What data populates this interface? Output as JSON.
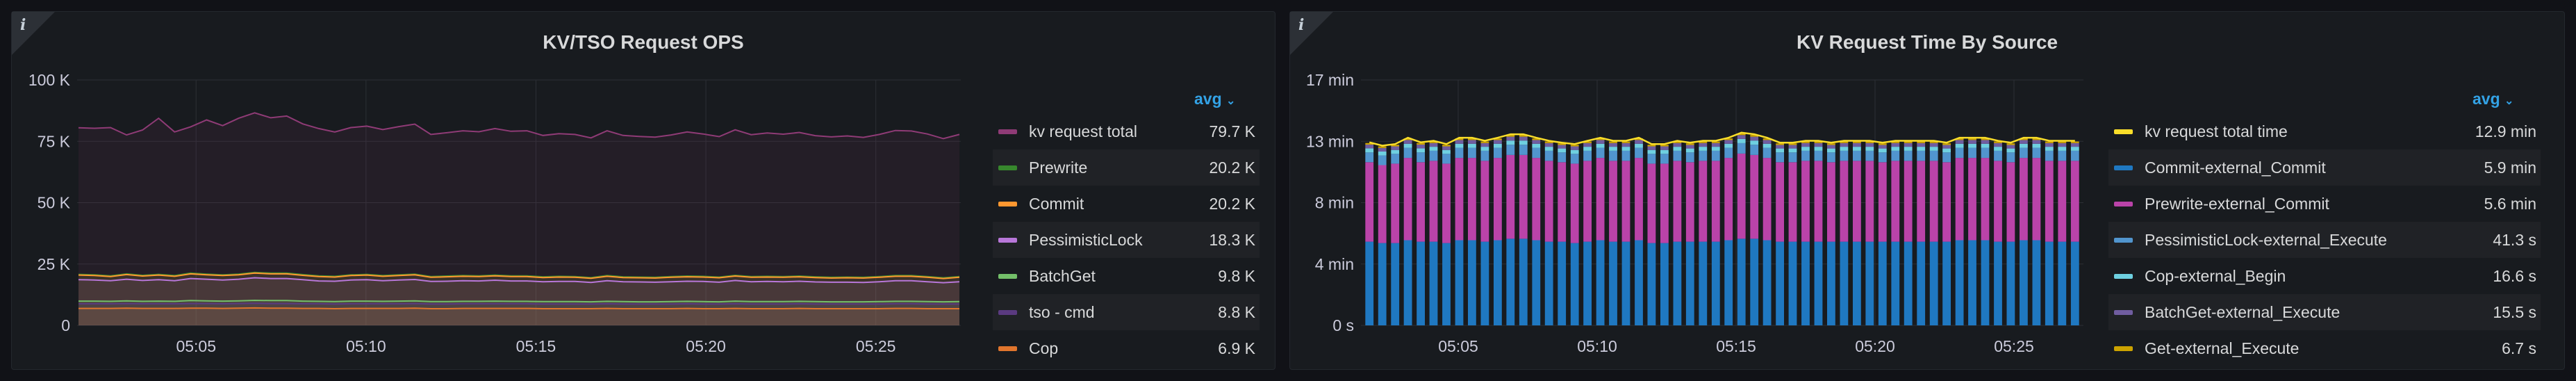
{
  "panels": [
    {
      "title": "KV/TSO Request OPS",
      "info_icon": "info-icon",
      "legend_calc": "avg",
      "legend_items": [
        {
          "name": "kv request total",
          "value": "79.7 K",
          "color": "#8f3b76"
        },
        {
          "name": "Prewrite",
          "value": "20.2 K",
          "color": "#37872d"
        },
        {
          "name": "Commit",
          "value": "20.2 K",
          "color": "#ff9830"
        },
        {
          "name": "PessimisticLock",
          "value": "18.3 K",
          "color": "#b877d9"
        },
        {
          "name": "BatchGet",
          "value": "9.8 K",
          "color": "#73bf69"
        },
        {
          "name": "tso - cmd",
          "value": "8.8 K",
          "color": "#5a3a80"
        },
        {
          "name": "Cop",
          "value": "6.9 K",
          "color": "#e0752d"
        }
      ]
    },
    {
      "title": "KV Request Time By Source",
      "info_icon": "info-icon",
      "legend_calc": "avg",
      "legend_items": [
        {
          "name": "kv request total time",
          "value": "12.9 min",
          "color": "#fade2a"
        },
        {
          "name": "Commit-external_Commit",
          "value": "5.9 min",
          "color": "#1f78c1"
        },
        {
          "name": "Prewrite-external_Commit",
          "value": "5.6 min",
          "color": "#ba43a9"
        },
        {
          "name": "PessimisticLock-external_Execute",
          "value": "41.3 s",
          "color": "#5195ce"
        },
        {
          "name": "Cop-external_Begin",
          "value": "16.6 s",
          "color": "#6ed0e0"
        },
        {
          "name": "BatchGet-external_Execute",
          "value": "15.5 s",
          "color": "#705da0"
        },
        {
          "name": "Get-external_Execute",
          "value": "6.7 s",
          "color": "#cca300"
        }
      ]
    }
  ],
  "chart_data": [
    {
      "type": "line",
      "title": "KV/TSO Request OPS",
      "x_range": [
        "05:01:30",
        "05:27:30"
      ],
      "x_ticks": [
        "05:05",
        "05:10",
        "05:15",
        "05:20",
        "05:25"
      ],
      "y_ticks": [
        "0",
        "25 K",
        "50 K",
        "75 K",
        "100 K"
      ],
      "ylim": [
        0,
        100000
      ],
      "grid": true,
      "legend_placement": "right",
      "series": [
        {
          "name": "kv request total",
          "values": [
            80500,
            80300,
            80600,
            77600,
            79600,
            84400,
            78800,
            80900,
            83700,
            81400,
            84400,
            86600,
            84600,
            85300,
            82100,
            80200,
            78800,
            80600,
            81200,
            79800,
            81000,
            82000,
            77800,
            78500,
            79300,
            78900,
            80200,
            79100,
            79300,
            77400,
            78100,
            77800,
            76400,
            79300,
            77400,
            77000,
            76700,
            77600,
            78800,
            78000,
            76900,
            79700,
            77700,
            78400,
            77900,
            78600,
            77300,
            76800,
            77200,
            76600,
            77800,
            79400,
            79200,
            78000,
            76100,
            77800
          ]
        },
        {
          "name": "Prewrite",
          "values": [
            20800,
            20600,
            20200,
            21000,
            20400,
            20800,
            20300,
            21300,
            20900,
            20600,
            20900,
            21600,
            21300,
            21300,
            20700,
            20200,
            20000,
            20600,
            20800,
            20300,
            20600,
            20900,
            19900,
            20100,
            20300,
            20200,
            20500,
            20200,
            20200,
            19800,
            20000,
            19900,
            19500,
            20300,
            19800,
            19700,
            19600,
            19900,
            20100,
            20000,
            19700,
            20400,
            19900,
            20000,
            19900,
            20100,
            19800,
            19600,
            19700,
            19600,
            19900,
            20300,
            20300,
            19900,
            19400,
            19900
          ]
        },
        {
          "name": "Commit",
          "values": [
            20500,
            20300,
            19900,
            20700,
            20100,
            20500,
            20000,
            21000,
            20600,
            20300,
            20600,
            21300,
            21000,
            21000,
            20400,
            19900,
            19700,
            20300,
            20500,
            20000,
            20300,
            20600,
            19600,
            19800,
            20000,
            19900,
            20200,
            19900,
            19900,
            19500,
            19700,
            19600,
            19200,
            20000,
            19500,
            19400,
            19300,
            19600,
            19800,
            19700,
            19400,
            20100,
            19600,
            19700,
            19600,
            19800,
            19500,
            19300,
            19400,
            19300,
            19600,
            20000,
            20000,
            19600,
            19100,
            19600
          ]
        },
        {
          "name": "PessimisticLock",
          "values": [
            18600,
            18500,
            18200,
            18800,
            18300,
            18600,
            18200,
            19100,
            18800,
            18500,
            18800,
            19400,
            19100,
            19100,
            18600,
            18100,
            18000,
            18500,
            18600,
            18200,
            18500,
            18700,
            17900,
            18000,
            18200,
            18100,
            18400,
            18100,
            18100,
            17800,
            17900,
            17900,
            17500,
            18200,
            17800,
            17700,
            17600,
            17800,
            18000,
            17900,
            17600,
            18300,
            17800,
            17900,
            17800,
            18000,
            17700,
            17600,
            17600,
            17500,
            17800,
            18200,
            18200,
            17800,
            17400,
            17800
          ]
        },
        {
          "name": "BatchGet",
          "values": [
            9900,
            9900,
            9800,
            10000,
            9800,
            9900,
            9800,
            10100,
            10000,
            9900,
            10000,
            10200,
            10100,
            10100,
            9900,
            9800,
            9700,
            9900,
            9900,
            9800,
            9900,
            10000,
            9700,
            9700,
            9800,
            9800,
            9900,
            9800,
            9800,
            9700,
            9700,
            9700,
            9600,
            9800,
            9700,
            9600,
            9600,
            9700,
            9800,
            9700,
            9600,
            9900,
            9700,
            9700,
            9700,
            9800,
            9700,
            9600,
            9600,
            9600,
            9700,
            9800,
            9800,
            9700,
            9600,
            9700
          ]
        },
        {
          "name": "tso - cmd",
          "values": [
            8800,
            8800,
            8800,
            8900,
            8800,
            8800,
            8800,
            8900,
            8900,
            8800,
            8900,
            9000,
            8900,
            8900,
            8800,
            8800,
            8700,
            8800,
            8800,
            8800,
            8800,
            8900,
            8700,
            8700,
            8800,
            8800,
            8800,
            8800,
            8800,
            8700,
            8700,
            8700,
            8700,
            8800,
            8700,
            8700,
            8700,
            8700,
            8800,
            8700,
            8700,
            8800,
            8700,
            8700,
            8700,
            8800,
            8700,
            8700,
            8700,
            8700,
            8700,
            8800,
            8800,
            8700,
            8700,
            8700
          ]
        },
        {
          "name": "Cop",
          "values": [
            6900,
            6900,
            6900,
            7000,
            6900,
            6900,
            6900,
            7000,
            7000,
            6900,
            7000,
            7100,
            7000,
            7000,
            6900,
            6900,
            6800,
            6900,
            6900,
            6900,
            6900,
            7000,
            6800,
            6800,
            6900,
            6900,
            6900,
            6900,
            6900,
            6800,
            6800,
            6800,
            6800,
            6900,
            6800,
            6800,
            6800,
            6800,
            6900,
            6800,
            6800,
            6900,
            6800,
            6800,
            6800,
            6900,
            6800,
            6800,
            6800,
            6800,
            6800,
            6900,
            6900,
            6800,
            6800,
            6800
          ]
        }
      ]
    },
    {
      "type": "bar",
      "stacked": true,
      "title": "KV Request Time By Source",
      "x_range": [
        "05:01:30",
        "05:27:30"
      ],
      "x_ticks": [
        "05:05",
        "05:10",
        "05:15",
        "05:20",
        "05:25"
      ],
      "y_ticks": [
        "0 s",
        "4 min",
        "8 min",
        "13 min",
        "17 min"
      ],
      "ylim": [
        0,
        17
      ],
      "y_unit": "min",
      "grid": true,
      "legend_placement": "right",
      "total_series": "kv request total time",
      "series": [
        {
          "name": "Commit-external_Commit",
          "values": [
            5.8,
            5.7,
            5.7,
            5.9,
            5.8,
            5.8,
            5.7,
            5.9,
            5.9,
            5.8,
            5.9,
            6.0,
            6.0,
            5.9,
            5.8,
            5.8,
            5.7,
            5.8,
            5.9,
            5.8,
            5.8,
            5.9,
            5.7,
            5.7,
            5.8,
            5.8,
            5.8,
            5.8,
            5.9,
            6.0,
            6.0,
            5.9,
            5.8,
            5.8,
            5.8,
            5.8,
            5.8,
            5.8,
            5.8,
            5.8,
            5.8,
            5.8,
            5.8,
            5.8,
            5.8,
            5.8,
            5.9,
            5.9,
            5.9,
            5.8,
            5.8,
            5.9,
            5.9,
            5.8,
            5.8,
            5.8
          ]
        },
        {
          "name": "Prewrite-external_Commit",
          "values": [
            5.5,
            5.4,
            5.5,
            5.7,
            5.5,
            5.6,
            5.5,
            5.7,
            5.7,
            5.6,
            5.7,
            5.8,
            5.8,
            5.7,
            5.6,
            5.5,
            5.5,
            5.6,
            5.7,
            5.6,
            5.6,
            5.7,
            5.5,
            5.5,
            5.6,
            5.5,
            5.6,
            5.6,
            5.7,
            5.9,
            5.8,
            5.7,
            5.5,
            5.5,
            5.6,
            5.6,
            5.5,
            5.6,
            5.6,
            5.6,
            5.5,
            5.6,
            5.6,
            5.6,
            5.6,
            5.5,
            5.7,
            5.7,
            5.7,
            5.6,
            5.5,
            5.7,
            5.7,
            5.6,
            5.6,
            5.6
          ]
        },
        {
          "name": "PessimisticLock-external_Execute",
          "values": [
            0.68,
            0.67,
            0.68,
            0.7,
            0.68,
            0.69,
            0.68,
            0.7,
            0.7,
            0.69,
            0.7,
            0.71,
            0.71,
            0.7,
            0.69,
            0.68,
            0.68,
            0.69,
            0.7,
            0.69,
            0.69,
            0.7,
            0.68,
            0.68,
            0.69,
            0.68,
            0.69,
            0.69,
            0.7,
            0.72,
            0.71,
            0.7,
            0.68,
            0.68,
            0.69,
            0.69,
            0.68,
            0.69,
            0.69,
            0.69,
            0.68,
            0.69,
            0.69,
            0.69,
            0.69,
            0.68,
            0.7,
            0.7,
            0.7,
            0.69,
            0.68,
            0.7,
            0.7,
            0.69,
            0.69,
            0.69
          ]
        },
        {
          "name": "Cop-external_Begin",
          "values": [
            0.28,
            0.27,
            0.27,
            0.28,
            0.28,
            0.28,
            0.27,
            0.28,
            0.28,
            0.28,
            0.28,
            0.29,
            0.29,
            0.28,
            0.28,
            0.27,
            0.27,
            0.28,
            0.28,
            0.28,
            0.28,
            0.28,
            0.27,
            0.27,
            0.28,
            0.27,
            0.28,
            0.28,
            0.28,
            0.29,
            0.29,
            0.28,
            0.27,
            0.27,
            0.28,
            0.28,
            0.27,
            0.28,
            0.28,
            0.28,
            0.27,
            0.28,
            0.28,
            0.28,
            0.28,
            0.27,
            0.28,
            0.28,
            0.28,
            0.28,
            0.27,
            0.28,
            0.28,
            0.28,
            0.28,
            0.28
          ]
        },
        {
          "name": "BatchGet-external_Execute",
          "values": [
            0.26,
            0.25,
            0.25,
            0.26,
            0.26,
            0.26,
            0.25,
            0.26,
            0.26,
            0.26,
            0.26,
            0.27,
            0.27,
            0.26,
            0.26,
            0.25,
            0.25,
            0.26,
            0.26,
            0.26,
            0.26,
            0.26,
            0.25,
            0.25,
            0.26,
            0.25,
            0.26,
            0.26,
            0.26,
            0.27,
            0.27,
            0.26,
            0.25,
            0.25,
            0.26,
            0.26,
            0.25,
            0.26,
            0.26,
            0.26,
            0.25,
            0.26,
            0.26,
            0.26,
            0.26,
            0.25,
            0.26,
            0.26,
            0.26,
            0.26,
            0.25,
            0.26,
            0.26,
            0.26,
            0.26,
            0.26
          ]
        },
        {
          "name": "Get-external_Execute",
          "values": [
            0.11,
            0.11,
            0.11,
            0.11,
            0.11,
            0.11,
            0.11,
            0.11,
            0.11,
            0.11,
            0.11,
            0.12,
            0.12,
            0.11,
            0.11,
            0.11,
            0.11,
            0.11,
            0.11,
            0.11,
            0.11,
            0.11,
            0.11,
            0.11,
            0.11,
            0.11,
            0.11,
            0.11,
            0.11,
            0.12,
            0.12,
            0.11,
            0.11,
            0.11,
            0.11,
            0.11,
            0.11,
            0.11,
            0.11,
            0.11,
            0.11,
            0.11,
            0.11,
            0.11,
            0.11,
            0.11,
            0.11,
            0.11,
            0.11,
            0.11,
            0.11,
            0.11,
            0.11,
            0.11,
            0.11,
            0.11
          ]
        }
      ]
    }
  ]
}
